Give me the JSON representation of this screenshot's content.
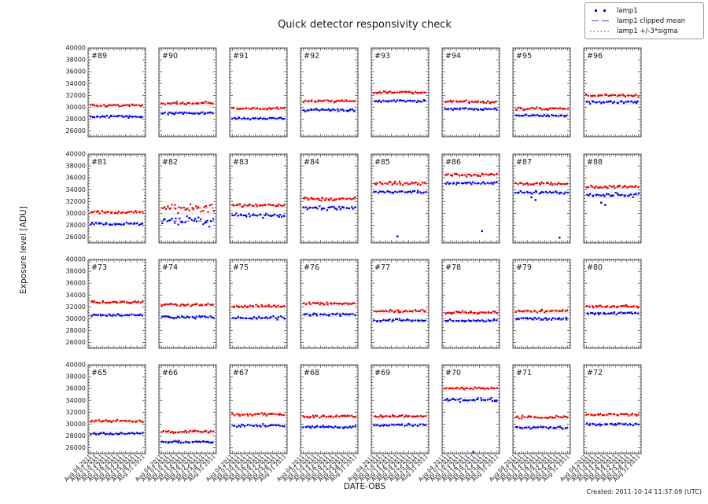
{
  "figure": {
    "title": "Quick detector responsivity check"
  },
  "legend": {
    "items": [
      {
        "label": "lamp1",
        "style": "dots"
      },
      {
        "label": "lamp1 clipped mean",
        "style": "dashed"
      },
      {
        "label": "lamp1 +/-3*sigma",
        "style": "dotted"
      }
    ]
  },
  "axes": {
    "ylabel": "Exposure level [ADU]",
    "xlabel": "DATE-OBS",
    "ylim": [
      25000,
      40000
    ],
    "y_ticks": [
      26000,
      28000,
      30000,
      32000,
      34000,
      36000,
      38000,
      40000
    ],
    "x_ticklabels": [
      "Aug 04 2011",
      "Aug 07 2011",
      "Aug 10 2011",
      "Aug 13 2011",
      "Aug 16 2011",
      "Aug 19 2011",
      "Aug 22 2011",
      "Aug 25 2011",
      "Aug 28 2011",
      "Aug 31 2011"
    ]
  },
  "footer": {
    "created": "Created: 2011-10-14 11:37:09 (UTC)"
  },
  "colors": {
    "red_marker": "#dd0000",
    "red_mean": "#ee3333",
    "red_sigma": "#ffaaaa",
    "blue_marker": "#0000dd",
    "blue_mean": "#3b3bee",
    "blue_sigma": "#a8a8f5",
    "box": "#555555",
    "tick": "#444444",
    "text": "#1a1a1a"
  },
  "chart_data": {
    "type": "scatter",
    "title": "Quick detector responsivity check",
    "xlabel": "DATE-OBS",
    "ylabel": "Exposure level [ADU]",
    "grid": {
      "rows": 4,
      "cols": 8
    },
    "points_per_subplot": 30,
    "series_legend": [
      "lamp1",
      "lamp1 clipped mean",
      "lamp1 +/-3*sigma"
    ],
    "subplots": [
      {
        "label": "#89",
        "red": {
          "mean": 30300,
          "sigma3": 300
        },
        "blue": {
          "mean": 28400,
          "sigma3": 300
        },
        "outliers": []
      },
      {
        "label": "#90",
        "red": {
          "mean": 30700,
          "sigma3": 300
        },
        "blue": {
          "mean": 29000,
          "sigma3": 300
        },
        "outliers": []
      },
      {
        "label": "#91",
        "red": {
          "mean": 29800,
          "sigma3": 300
        },
        "blue": {
          "mean": 28100,
          "sigma3": 300
        },
        "outliers": []
      },
      {
        "label": "#92",
        "red": {
          "mean": 31000,
          "sigma3": 300
        },
        "blue": {
          "mean": 29500,
          "sigma3": 300
        },
        "outliers": []
      },
      {
        "label": "#93",
        "red": {
          "mean": 32500,
          "sigma3": 300
        },
        "blue": {
          "mean": 31050,
          "sigma3": 300
        },
        "outliers": []
      },
      {
        "label": "#94",
        "red": {
          "mean": 30900,
          "sigma3": 300
        },
        "blue": {
          "mean": 29700,
          "sigma3": 300
        },
        "outliers": []
      },
      {
        "label": "#95",
        "red": {
          "mean": 29700,
          "sigma3": 300
        },
        "blue": {
          "mean": 28600,
          "sigma3": 300
        },
        "outliers": []
      },
      {
        "label": "#96",
        "red": {
          "mean": 32000,
          "sigma3": 350
        },
        "blue": {
          "mean": 30850,
          "sigma3": 350
        },
        "outliers": []
      },
      {
        "label": "#81",
        "red": {
          "mean": 30200,
          "sigma3": 350
        },
        "blue": {
          "mean": 28200,
          "sigma3": 400
        },
        "outliers": []
      },
      {
        "label": "#82",
        "red": {
          "mean": 30900,
          "sigma3": 1100
        },
        "blue": {
          "mean": 28700,
          "sigma3": 1300
        },
        "outliers": []
      },
      {
        "label": "#83",
        "red": {
          "mean": 31350,
          "sigma3": 350
        },
        "blue": {
          "mean": 29700,
          "sigma3": 600
        },
        "outliers": []
      },
      {
        "label": "#84",
        "red": {
          "mean": 32450,
          "sigma3": 350
        },
        "blue": {
          "mean": 30900,
          "sigma3": 450
        },
        "outliers": []
      },
      {
        "label": "#85",
        "red": {
          "mean": 35100,
          "sigma3": 400
        },
        "blue": {
          "mean": 33600,
          "sigma3": 400
        },
        "outliers": [
          {
            "series": "blue",
            "value": 26100,
            "frac": 0.45
          }
        ]
      },
      {
        "label": "#86",
        "red": {
          "mean": 36500,
          "sigma3": 350
        },
        "blue": {
          "mean": 35100,
          "sigma3": 400
        },
        "outliers": [
          {
            "series": "blue",
            "value": 27000,
            "frac": 0.72
          }
        ]
      },
      {
        "label": "#87",
        "red": {
          "mean": 35000,
          "sigma3": 350
        },
        "blue": {
          "mean": 33500,
          "sigma3": 400
        },
        "outliers": [
          {
            "series": "blue",
            "value": 32700,
            "frac": 0.3
          },
          {
            "series": "blue",
            "value": 32250,
            "frac": 0.38
          },
          {
            "series": "blue",
            "value": 25900,
            "frac": 0.85
          }
        ]
      },
      {
        "label": "#88",
        "red": {
          "mean": 34450,
          "sigma3": 350
        },
        "blue": {
          "mean": 33100,
          "sigma3": 500
        },
        "outliers": [
          {
            "series": "blue",
            "value": 31800,
            "frac": 0.28
          },
          {
            "series": "blue",
            "value": 31400,
            "frac": 0.36
          }
        ]
      },
      {
        "label": "#73",
        "red": {
          "mean": 32800,
          "sigma3": 300
        },
        "blue": {
          "mean": 30600,
          "sigma3": 300
        },
        "outliers": []
      },
      {
        "label": "#74",
        "red": {
          "mean": 32350,
          "sigma3": 300
        },
        "blue": {
          "mean": 30250,
          "sigma3": 300
        },
        "outliers": []
      },
      {
        "label": "#75",
        "red": {
          "mean": 32100,
          "sigma3": 300
        },
        "blue": {
          "mean": 30150,
          "sigma3": 400
        },
        "outliers": []
      },
      {
        "label": "#76",
        "red": {
          "mean": 32550,
          "sigma3": 300
        },
        "blue": {
          "mean": 30700,
          "sigma3": 300
        },
        "outliers": []
      },
      {
        "label": "#77",
        "red": {
          "mean": 31280,
          "sigma3": 300
        },
        "blue": {
          "mean": 29700,
          "sigma3": 300
        },
        "outliers": []
      },
      {
        "label": "#78",
        "red": {
          "mean": 31050,
          "sigma3": 300
        },
        "blue": {
          "mean": 29700,
          "sigma3": 300
        },
        "outliers": []
      },
      {
        "label": "#79",
        "red": {
          "mean": 31280,
          "sigma3": 300
        },
        "blue": {
          "mean": 30000,
          "sigma3": 300
        },
        "outliers": []
      },
      {
        "label": "#80",
        "red": {
          "mean": 32100,
          "sigma3": 300
        },
        "blue": {
          "mean": 30900,
          "sigma3": 300
        },
        "outliers": []
      },
      {
        "label": "#65",
        "red": {
          "mean": 30500,
          "sigma3": 300
        },
        "blue": {
          "mean": 28400,
          "sigma3": 300
        },
        "outliers": []
      },
      {
        "label": "#66",
        "red": {
          "mean": 28700,
          "sigma3": 300
        },
        "blue": {
          "mean": 27000,
          "sigma3": 300
        },
        "outliers": []
      },
      {
        "label": "#67",
        "red": {
          "mean": 31600,
          "sigma3": 350
        },
        "blue": {
          "mean": 29700,
          "sigma3": 350
        },
        "outliers": []
      },
      {
        "label": "#68",
        "red": {
          "mean": 31280,
          "sigma3": 300
        },
        "blue": {
          "mean": 29500,
          "sigma3": 300
        },
        "outliers": []
      },
      {
        "label": "#69",
        "red": {
          "mean": 31300,
          "sigma3": 300
        },
        "blue": {
          "mean": 29800,
          "sigma3": 300
        },
        "outliers": []
      },
      {
        "label": "#70",
        "red": {
          "mean": 36000,
          "sigma3": 350
        },
        "blue": {
          "mean": 34100,
          "sigma3": 400
        },
        "outliers": [
          {
            "series": "blue",
            "value": 25300,
            "frac": 0.55
          }
        ]
      },
      {
        "label": "#71",
        "red": {
          "mean": 31150,
          "sigma3": 350
        },
        "blue": {
          "mean": 29400,
          "sigma3": 350
        },
        "outliers": []
      },
      {
        "label": "#72",
        "red": {
          "mean": 31600,
          "sigma3": 300
        },
        "blue": {
          "mean": 29960,
          "sigma3": 300
        },
        "outliers": []
      }
    ]
  }
}
